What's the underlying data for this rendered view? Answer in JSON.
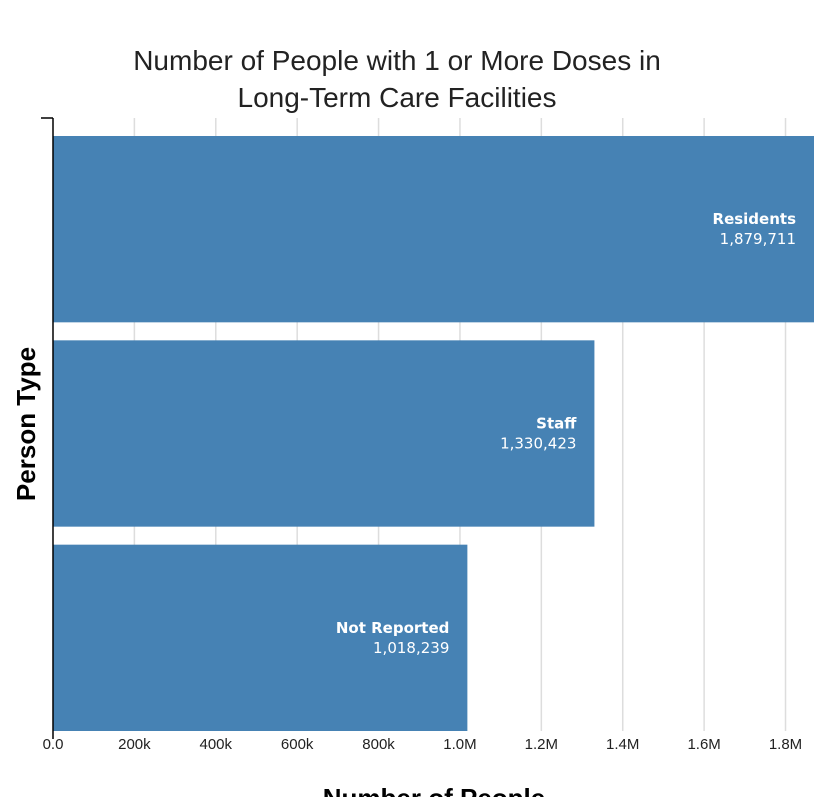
{
  "chart_data": {
    "type": "bar",
    "orientation": "horizontal",
    "title_lines": [
      "Number of People with 1 or More Doses in",
      "Long-Term Care Facilities"
    ],
    "xlabel": "Number of People",
    "ylabel": "Person Type",
    "categories": [
      "Residents",
      "Staff",
      "Not Reported"
    ],
    "values": [
      1879711,
      1330423,
      1018239
    ],
    "value_labels": [
      "1,879,711",
      "1,330,423",
      "1,018,239"
    ],
    "xlim": [
      0,
      1870000
    ],
    "x_ticks": [
      0,
      200000,
      400000,
      600000,
      800000,
      1000000,
      1200000,
      1400000,
      1600000,
      1800000
    ],
    "x_tick_labels": [
      "0.0",
      "200k",
      "400k",
      "600k",
      "800k",
      "1.0M",
      "1.2M",
      "1.4M",
      "1.6M",
      "1.8M"
    ],
    "grid": "vertical",
    "bar_color": "#4682b4",
    "grid_color": "#dddddd"
  }
}
